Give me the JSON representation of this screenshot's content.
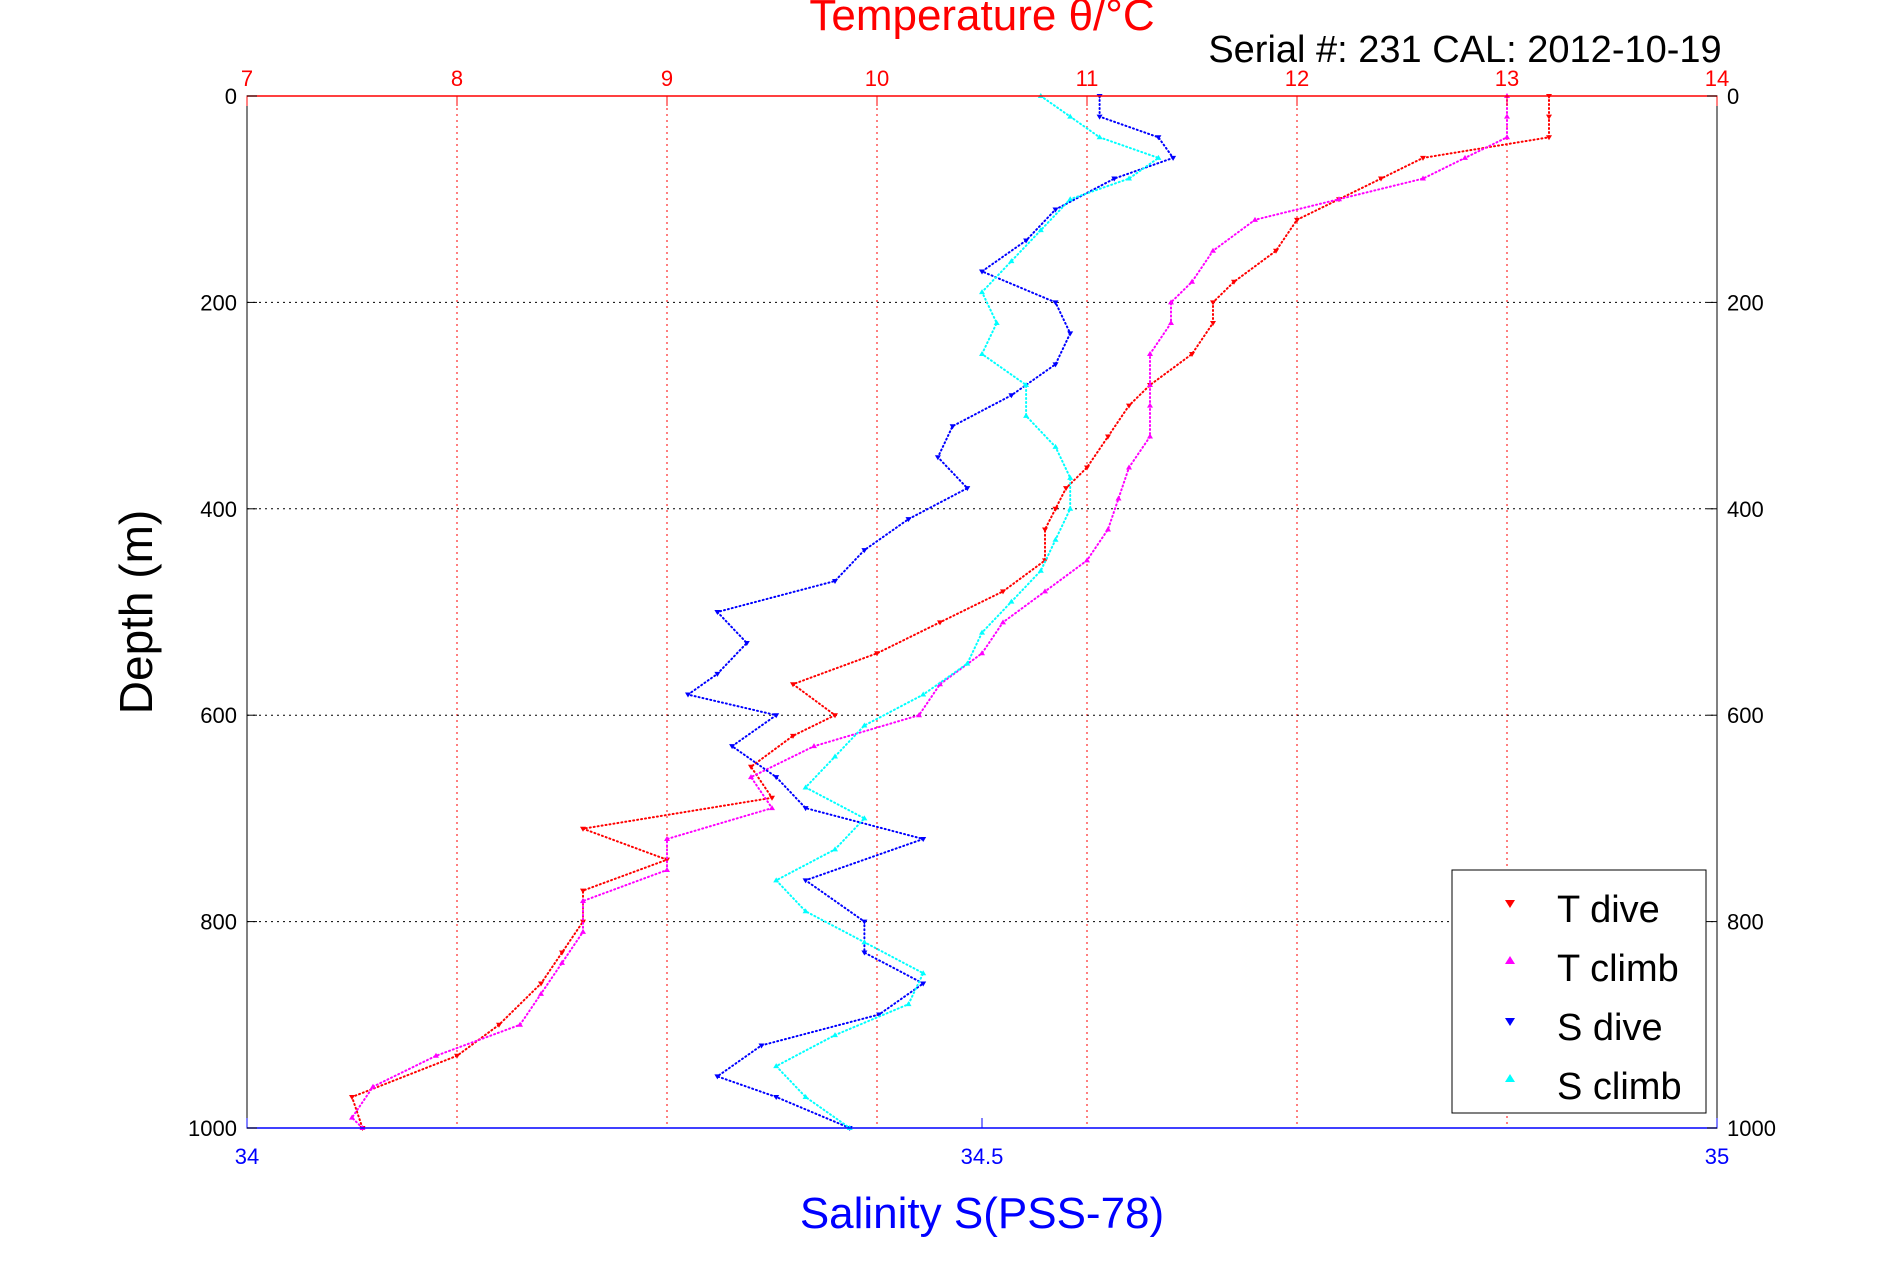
{
  "chart_data": {
    "type": "scatter",
    "title_top": "Temperature θ/°C",
    "subtitle": "Serial #: 231   CAL: 2012-10-19",
    "ylabel": "Depth (m)",
    "xlabel_bottom": "Salinity S(PSS-78)",
    "temperature_axis": {
      "range": [
        7,
        14
      ],
      "ticks": [
        "7",
        "8",
        "9",
        "10",
        "11",
        "12",
        "13",
        "14"
      ]
    },
    "salinity_axis": {
      "range": [
        34,
        35
      ],
      "ticks": [
        "34",
        "34.5",
        "35"
      ]
    },
    "depth_axis": {
      "range": [
        0,
        1000
      ],
      "reversed": true,
      "ticks": [
        "0",
        "200",
        "400",
        "600",
        "800",
        "1000"
      ]
    },
    "grid": true,
    "legend_placement": "bottom-right",
    "colors": {
      "t_dive": "#ff0000",
      "t_climb": "#ff00ff",
      "s_dive": "#0000ff",
      "s_climb": "#00ffff",
      "temp_axis": "#ff0000",
      "sal_axis": "#0000ff"
    },
    "series": [
      {
        "name": "T dive",
        "axis": "temperature",
        "depth": [
          0,
          20,
          40,
          60,
          80,
          100,
          120,
          150,
          180,
          200,
          220,
          250,
          280,
          300,
          330,
          360,
          380,
          400,
          420,
          450,
          480,
          510,
          540,
          570,
          600,
          620,
          650,
          680,
          710,
          740,
          770,
          800,
          830,
          860,
          900,
          930,
          970,
          1000
        ],
        "values": [
          13.2,
          13.2,
          13.2,
          12.6,
          12.4,
          12.2,
          12.0,
          11.9,
          11.7,
          11.6,
          11.6,
          11.5,
          11.3,
          11.2,
          11.1,
          11.0,
          10.9,
          10.85,
          10.8,
          10.8,
          10.6,
          10.3,
          10.0,
          9.6,
          9.8,
          9.6,
          9.4,
          9.5,
          8.6,
          9.0,
          8.6,
          8.6,
          8.5,
          8.4,
          8.2,
          8.0,
          7.5,
          7.55
        ]
      },
      {
        "name": "T climb",
        "axis": "temperature",
        "depth": [
          0,
          20,
          40,
          60,
          80,
          100,
          120,
          150,
          180,
          200,
          220,
          250,
          280,
          300,
          330,
          360,
          390,
          420,
          450,
          480,
          510,
          540,
          570,
          600,
          630,
          660,
          690,
          720,
          750,
          780,
          810,
          840,
          870,
          900,
          930,
          960,
          990,
          1000
        ],
        "values": [
          13.0,
          13.0,
          13.0,
          12.8,
          12.6,
          12.2,
          11.8,
          11.6,
          11.5,
          11.4,
          11.4,
          11.3,
          11.3,
          11.3,
          11.3,
          11.2,
          11.15,
          11.1,
          11.0,
          10.8,
          10.6,
          10.5,
          10.3,
          10.2,
          9.7,
          9.4,
          9.5,
          9.0,
          9.0,
          8.6,
          8.6,
          8.5,
          8.4,
          8.3,
          7.9,
          7.6,
          7.5,
          7.55
        ]
      },
      {
        "name": "S dive",
        "axis": "salinity",
        "depth": [
          0,
          20,
          40,
          60,
          80,
          110,
          140,
          170,
          200,
          230,
          260,
          290,
          320,
          350,
          380,
          410,
          440,
          470,
          500,
          530,
          560,
          580,
          600,
          630,
          660,
          690,
          720,
          760,
          800,
          830,
          860,
          890,
          920,
          950,
          970,
          1000
        ],
        "values": [
          34.58,
          34.58,
          34.62,
          34.63,
          34.59,
          34.55,
          34.53,
          34.5,
          34.55,
          34.56,
          34.55,
          34.52,
          34.48,
          34.47,
          34.49,
          34.45,
          34.42,
          34.4,
          34.32,
          34.34,
          34.32,
          34.3,
          34.36,
          34.33,
          34.36,
          34.38,
          34.46,
          34.38,
          34.42,
          34.42,
          34.46,
          34.43,
          34.35,
          34.32,
          34.36,
          34.41
        ]
      },
      {
        "name": "S climb",
        "axis": "salinity",
        "depth": [
          0,
          20,
          40,
          60,
          80,
          100,
          130,
          160,
          190,
          220,
          250,
          280,
          310,
          340,
          370,
          400,
          430,
          460,
          490,
          520,
          550,
          580,
          610,
          640,
          670,
          700,
          730,
          760,
          790,
          820,
          850,
          880,
          910,
          940,
          970,
          1000
        ],
        "values": [
          34.54,
          34.56,
          34.58,
          34.62,
          34.6,
          34.56,
          34.54,
          34.52,
          34.5,
          34.51,
          34.5,
          34.53,
          34.53,
          34.55,
          34.56,
          34.56,
          34.55,
          34.54,
          34.52,
          34.5,
          34.49,
          34.46,
          34.42,
          34.4,
          34.38,
          34.42,
          34.4,
          34.36,
          34.38,
          34.42,
          34.46,
          34.45,
          34.4,
          34.36,
          34.38,
          34.41
        ]
      }
    ]
  }
}
